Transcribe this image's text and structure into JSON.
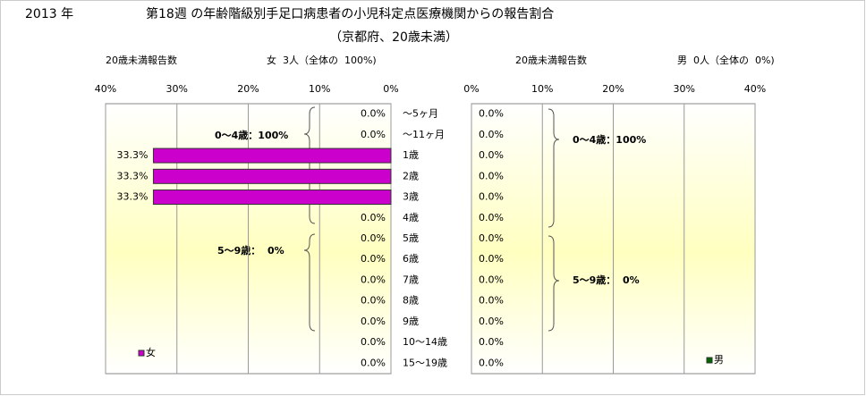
{
  "header": {
    "year": "2013 年",
    "title": "第18週 の年齢階級別手足口病患者の小児科定点医療機関からの報告割合",
    "subtitle": "（京都府、20歳未満）"
  },
  "chart_data": [
    {
      "type": "bar",
      "orientation": "horizontal",
      "count_label": "20歳未満報告数",
      "summary": "女  3人（全体の  100%)",
      "categories": [
        "～5ヶ月",
        "～11ヶ月",
        "1歳",
        "2歳",
        "3歳",
        "4歳",
        "5歳",
        "6歳",
        "7歳",
        "8歳",
        "9歳",
        "10～14歳",
        "15～19歳"
      ],
      "series": [
        {
          "name": "女",
          "color": "#cc00cc",
          "values": [
            0,
            0,
            33.3,
            33.3,
            33.3,
            0,
            0,
            0,
            0,
            0,
            0,
            0,
            0
          ],
          "value_labels": [
            "0.0%",
            "0.0%",
            "33.3%",
            "33.3%",
            "33.3%",
            "0.0%",
            "0.0%",
            "0.0%",
            "0.0%",
            "0.0%",
            "0.0%",
            "0.0%",
            "0.0%"
          ]
        }
      ],
      "xlim": [
        40,
        0
      ],
      "xticks": [
        {
          "value": 40,
          "label": "40%"
        },
        {
          "value": 30,
          "label": "30%"
        },
        {
          "value": 20,
          "label": "20%"
        },
        {
          "value": 10,
          "label": "10%"
        },
        {
          "value": 0,
          "label": "0%"
        }
      ],
      "grid": true,
      "annotations": [
        "0～4歳：100%",
        "5～9歳：  0%"
      ]
    },
    {
      "type": "bar",
      "orientation": "horizontal",
      "count_label": "20歳未満報告数",
      "summary": "男  0人（全体の  0%)",
      "series": [
        {
          "name": "男",
          "color": "#006600",
          "values": [
            0,
            0,
            0,
            0,
            0,
            0,
            0,
            0,
            0,
            0,
            0,
            0,
            0
          ],
          "value_labels": [
            "0.0%",
            "0.0%",
            "0.0%",
            "0.0%",
            "0.0%",
            "0.0%",
            "0.0%",
            "0.0%",
            "0.0%",
            "0.0%",
            "0.0%",
            "0.0%",
            "0.0%"
          ]
        }
      ],
      "xlim": [
        0,
        40
      ],
      "xticks": [
        {
          "value": 0,
          "label": "0%"
        },
        {
          "value": 10,
          "label": "10%"
        },
        {
          "value": 20,
          "label": "20%"
        },
        {
          "value": 30,
          "label": "30%"
        },
        {
          "value": 40,
          "label": "40%"
        }
      ],
      "grid": true,
      "annotations": [
        "0～4歳：100%",
        "5～9歳：  0%"
      ]
    }
  ]
}
